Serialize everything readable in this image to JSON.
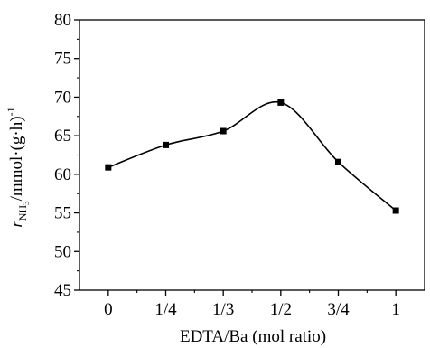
{
  "chart_data": {
    "type": "line",
    "categories": [
      "0",
      "1/4",
      "1/3",
      "1/2",
      "3/4",
      "1"
    ],
    "series": [
      {
        "values": [
          60.9,
          63.8,
          65.6,
          69.3,
          61.6,
          55.3
        ]
      }
    ],
    "xlabel": "EDTA/Ba (mol ratio)",
    "ylabel": {
      "symbol": "r",
      "subscript": "NH",
      "sub_subscript": "3",
      "unit": "/mmol·(g·h)",
      "superscript": "-1"
    },
    "ylim": [
      45,
      80
    ],
    "yticks": [
      45,
      50,
      55,
      60,
      65,
      70,
      75,
      80
    ],
    "grid": false,
    "line_color": "#000000",
    "marker": "square"
  }
}
